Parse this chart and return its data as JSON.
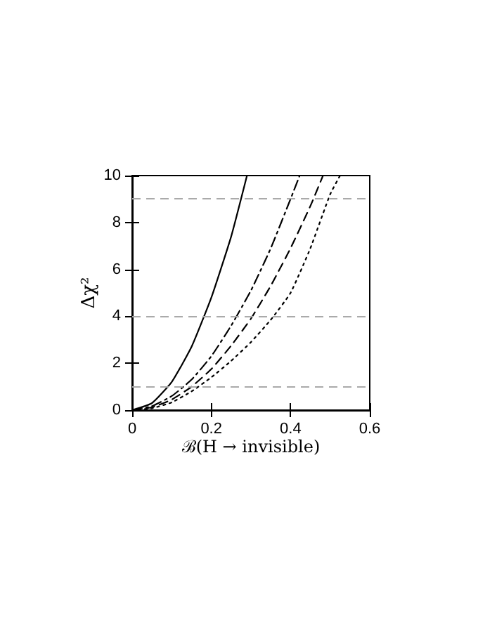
{
  "chart_data": {
    "type": "line",
    "xlabel": "ℬ(H → invisible)",
    "ylabel": "Δχ²",
    "xlim": [
      0,
      0.6
    ],
    "xticks": [
      0,
      0.2,
      0.4,
      0.6
    ],
    "ylim": [
      0,
      10
    ],
    "yticks": [
      0,
      2,
      4,
      6,
      8,
      10
    ],
    "grid": false,
    "marker": "none",
    "series": [
      {
        "color": "#000000",
        "line_style": "solid",
        "x": [
          0,
          0.05,
          0.1,
          0.15,
          0.2,
          0.25,
          0.29
        ],
        "values": [
          0,
          0.3,
          1.2,
          2.7,
          4.8,
          7.4,
          10
        ]
      },
      {
        "color": "#000000",
        "line_style": "dashdot",
        "x": [
          0,
          0.05,
          0.1,
          0.15,
          0.2,
          0.25,
          0.3,
          0.35,
          0.4,
          0.423
        ],
        "values": [
          0,
          0.17,
          0.6,
          1.3,
          2.3,
          3.6,
          5.1,
          6.9,
          9,
          10
        ]
      },
      {
        "color": "#000000",
        "line_style": "dashed",
        "x": [
          0,
          0.05,
          0.1,
          0.15,
          0.2,
          0.25,
          0.3,
          0.35,
          0.4,
          0.45,
          0.482
        ],
        "values": [
          0,
          0.12,
          0.45,
          1.0,
          1.75,
          2.75,
          3.9,
          5.3,
          6.9,
          8.7,
          10
        ]
      },
      {
        "color": "#000000",
        "line_style": "dotted",
        "x": [
          0,
          0.05,
          0.1,
          0.15,
          0.2,
          0.25,
          0.3,
          0.35,
          0.4,
          0.45,
          0.5,
          0.525
        ],
        "values": [
          0,
          0.08,
          0.33,
          0.8,
          1.4,
          2.1,
          2.9,
          3.85,
          5.0,
          6.9,
          9.2,
          10
        ]
      }
    ],
    "ref_lines": [
      {
        "axis": "y",
        "value": 1,
        "color": "#aaaaaa",
        "line_style": "dashed"
      },
      {
        "axis": "y",
        "value": 4,
        "color": "#aaaaaa",
        "line_style": "dashed"
      },
      {
        "axis": "y",
        "value": 9,
        "color": "#aaaaaa",
        "line_style": "dashed"
      }
    ]
  }
}
